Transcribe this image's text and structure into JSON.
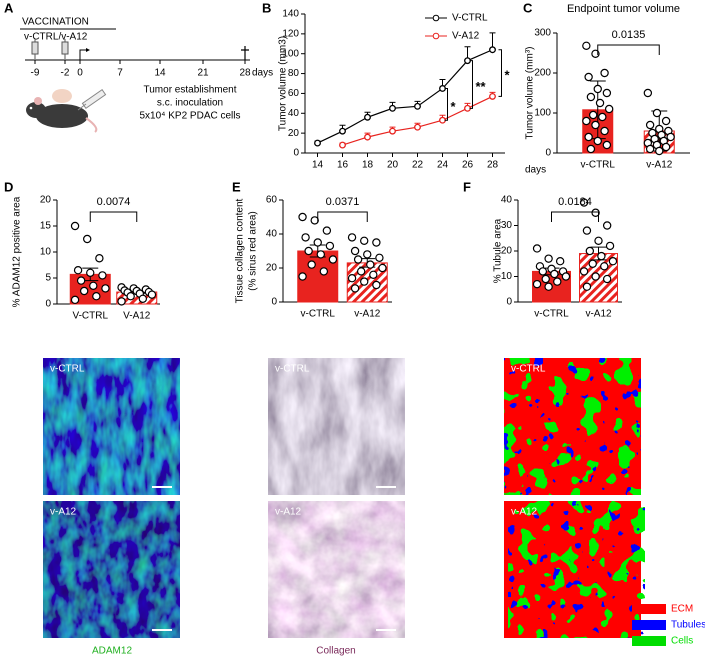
{
  "panel_labels": [
    "A",
    "B",
    "C",
    "D",
    "E",
    "F"
  ],
  "timeline": {
    "title": "VACCINATION",
    "groups": "v-CTRL/v-A12",
    "ticks": [
      "-9",
      "-2",
      "0",
      "7",
      "14",
      "21",
      "28"
    ],
    "unit": "days",
    "caption": [
      "Tumor establishment",
      "s.c. inoculation",
      "5x10⁴ KP2 PDAC cells"
    ]
  },
  "chart_data": [
    {
      "type": "line",
      "x": [
        14,
        16,
        18,
        20,
        22,
        24,
        26,
        28
      ],
      "xlim": [
        13,
        29
      ],
      "xticks": [
        14,
        16,
        18,
        20,
        22,
        24,
        26,
        28
      ],
      "x_label": "days",
      "y_label": "Tumor volume (mm3)",
      "ylim": [
        0,
        140
      ],
      "yticks": [
        0,
        20,
        40,
        60,
        80,
        100,
        120,
        140
      ],
      "series": [
        {
          "name": "V-CTRL",
          "color": "#000000",
          "values": [
            10,
            22,
            36,
            45,
            47,
            65,
            93,
            104
          ],
          "errors": [
            2,
            6,
            5,
            6,
            5,
            9,
            14,
            17
          ]
        },
        {
          "name": "V-A12",
          "color": "#e8231f",
          "values": [
            null,
            8,
            16,
            22,
            26,
            33,
            45,
            57
          ],
          "errors": [
            null,
            2,
            4,
            4,
            4,
            5,
            5,
            4
          ]
        }
      ],
      "annotations": [
        "*",
        "**",
        "*"
      ]
    },
    {
      "type": "bar",
      "title": "Endpoint tumor volume",
      "y_label": "Tumor volume (mm³)",
      "categories": [
        "v-CTRL",
        "v-A12"
      ],
      "values": [
        108,
        55
      ],
      "errors": [
        72,
        50
      ],
      "colors": [
        "#e8231f",
        "#e8231f"
      ],
      "hatch": [
        false,
        true
      ],
      "ylim": [
        0,
        300
      ],
      "yticks": [
        0,
        100,
        200,
        300
      ],
      "p_value": "0.0135",
      "points": [
        [
          268,
          248,
          200,
          190,
          160,
          150,
          140,
          125,
          110,
          95,
          90,
          80,
          70,
          55,
          40,
          30,
          20,
          10
        ],
        [
          150,
          100,
          80,
          70,
          60,
          55,
          50,
          45,
          40,
          35,
          30,
          25,
          20,
          15,
          10,
          5
        ]
      ]
    },
    {
      "type": "bar",
      "y_label": "% ADAM12 positive area",
      "categories": [
        "V-CTRL",
        "V-A12"
      ],
      "values": [
        5.7,
        2.3
      ],
      "errors": [
        1.2,
        0.3
      ],
      "colors": [
        "#e8231f",
        "#e8231f"
      ],
      "hatch": [
        false,
        true
      ],
      "ylim": [
        0,
        20
      ],
      "yticks": [
        0,
        5,
        10,
        15,
        20
      ],
      "p_value": "0.0074",
      "points": [
        [
          15,
          12.5,
          8.8,
          6.5,
          6,
          5.5,
          4.5,
          3.5,
          3,
          2.5,
          1.5,
          0.8
        ],
        [
          3.2,
          3,
          2.8,
          2.6,
          2.5,
          2.3,
          2.2,
          2,
          1.8,
          1.5,
          1,
          0.5
        ]
      ]
    },
    {
      "type": "bar",
      "y_label": [
        "Tissue collagen content",
        "(% sirus red area)"
      ],
      "categories": [
        "v-CTRL",
        "v-A12"
      ],
      "values": [
        30,
        23
      ],
      "errors": [
        3.5,
        2.5
      ],
      "colors": [
        "#e8231f",
        "#e8231f"
      ],
      "hatch": [
        false,
        true
      ],
      "ylim": [
        0,
        60
      ],
      "yticks": [
        0,
        20,
        40,
        60
      ],
      "p_value": "0.0371",
      "points": [
        [
          50,
          48,
          42,
          38,
          35,
          33,
          30,
          28,
          25,
          22,
          18,
          15
        ],
        [
          38,
          36,
          35,
          30,
          28,
          26,
          25,
          22,
          20,
          18,
          16,
          14,
          12,
          10,
          8
        ]
      ]
    },
    {
      "type": "bar",
      "y_label": "% Tubule area",
      "categories": [
        "v-CTRL",
        "v-A12"
      ],
      "values": [
        12,
        19
      ],
      "errors": [
        1.3,
        2.5
      ],
      "colors": [
        "#e8231f",
        "#e8231f"
      ],
      "hatch": [
        false,
        true
      ],
      "ylim": [
        0,
        40
      ],
      "yticks": [
        0,
        10,
        20,
        30,
        40
      ],
      "p_value": "0.0184",
      "points": [
        [
          21,
          17,
          16,
          14,
          13,
          12,
          12,
          11,
          10,
          9,
          8,
          7,
          6
        ],
        [
          39,
          35,
          30,
          28,
          24,
          22,
          20,
          18,
          16,
          15,
          14,
          12,
          10,
          9,
          6
        ]
      ]
    }
  ],
  "images": {
    "D": {
      "labels": [
        "v-CTRL",
        "v-A12"
      ],
      "caption": "ADAM12"
    },
    "E": {
      "labels": [
        "v-CTRL",
        "v-A12"
      ],
      "caption": "Collagen"
    },
    "F": {
      "labels": [
        "v-CTRL",
        "v-A12"
      ]
    }
  },
  "segmentation_legend": [
    {
      "name": "ECM",
      "color": "#ff0000"
    },
    {
      "name": "Tubules",
      "color": "#0000ff"
    },
    {
      "name": "Cells",
      "color": "#00dd00"
    }
  ]
}
